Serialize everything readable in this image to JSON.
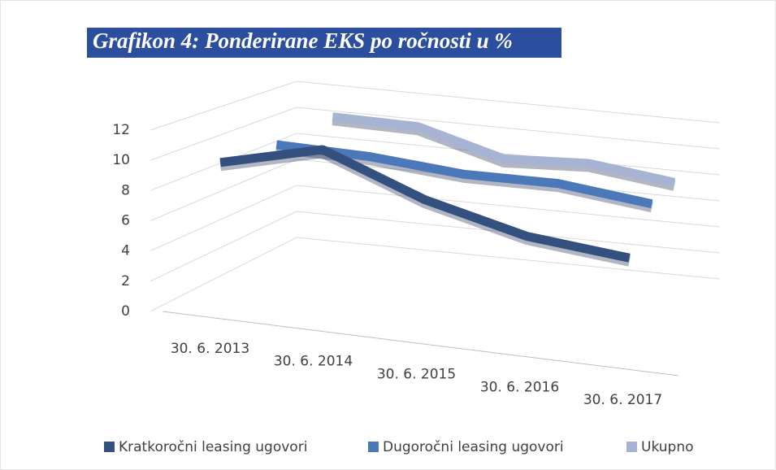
{
  "chart_data": {
    "type": "line",
    "title": "Grafikon 4: Ponderirane EKS po ročnosti u %",
    "categories": [
      "30. 6. 2013",
      "30. 6. 2014",
      "30. 6. 2015",
      "30. 6. 2016",
      "30. 6. 2017"
    ],
    "series": [
      {
        "name": "Kratkoročni leasing ugovori",
        "color": "#34507f",
        "values": [
          10.1,
          11.8,
          9.3,
          7.7,
          7.1
        ]
      },
      {
        "name": "Dugoročni leasing ugovori",
        "color": "#4a78b8",
        "values": [
          9.6,
          9.5,
          9.0,
          9.1,
          8.4
        ]
      },
      {
        "name": "Ukupno",
        "color": "#a7b3d3",
        "values": [
          9.8,
          9.7,
          7.9,
          8.2,
          7.4
        ]
      }
    ],
    "ylim": [
      0,
      12
    ],
    "yticks": [
      0,
      2,
      4,
      6,
      8,
      10,
      12
    ],
    "grid": true,
    "legend": "bottom"
  }
}
